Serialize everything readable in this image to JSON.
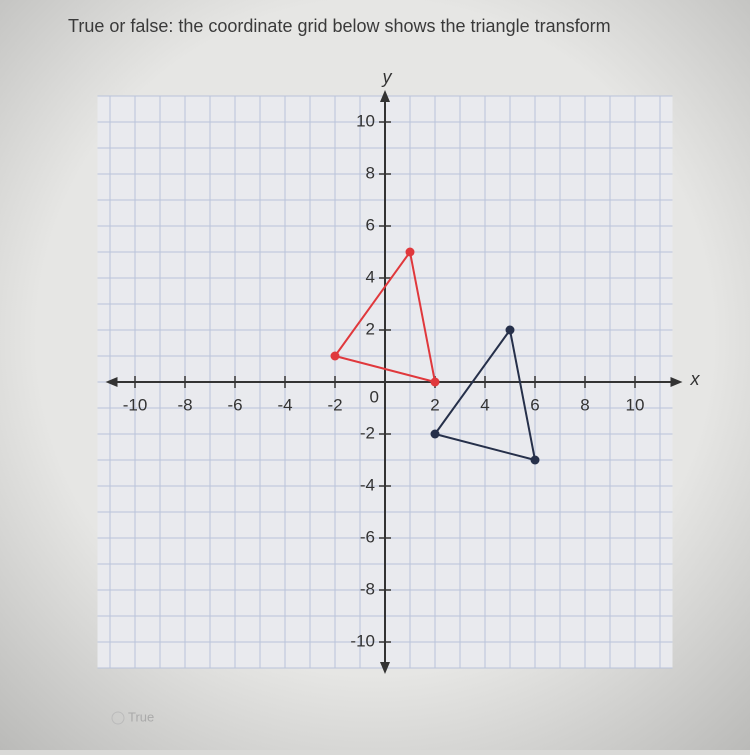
{
  "question": "True or false: the coordinate grid below shows the triangle transform",
  "graph": {
    "x_label": "x",
    "y_label": "y",
    "origin_label": "0",
    "xlim": [
      -11.5,
      11.5
    ],
    "ylim": [
      -11,
      11
    ],
    "grid_step": 1,
    "xticks": [
      -10,
      -8,
      -6,
      -4,
      -2,
      2,
      4,
      6,
      8,
      10
    ],
    "yticks": [
      10,
      8,
      6,
      4,
      2,
      -2,
      -4,
      -6,
      -8,
      -10
    ],
    "shapes": [
      {
        "color": "#e0383c",
        "x": [
          -2,
          1,
          2
        ],
        "y": [
          1,
          5,
          0
        ]
      },
      {
        "color": "#26304a",
        "x": [
          2,
          5,
          6
        ],
        "y": [
          -2,
          2,
          -3
        ]
      }
    ]
  },
  "options": [
    "True"
  ]
}
